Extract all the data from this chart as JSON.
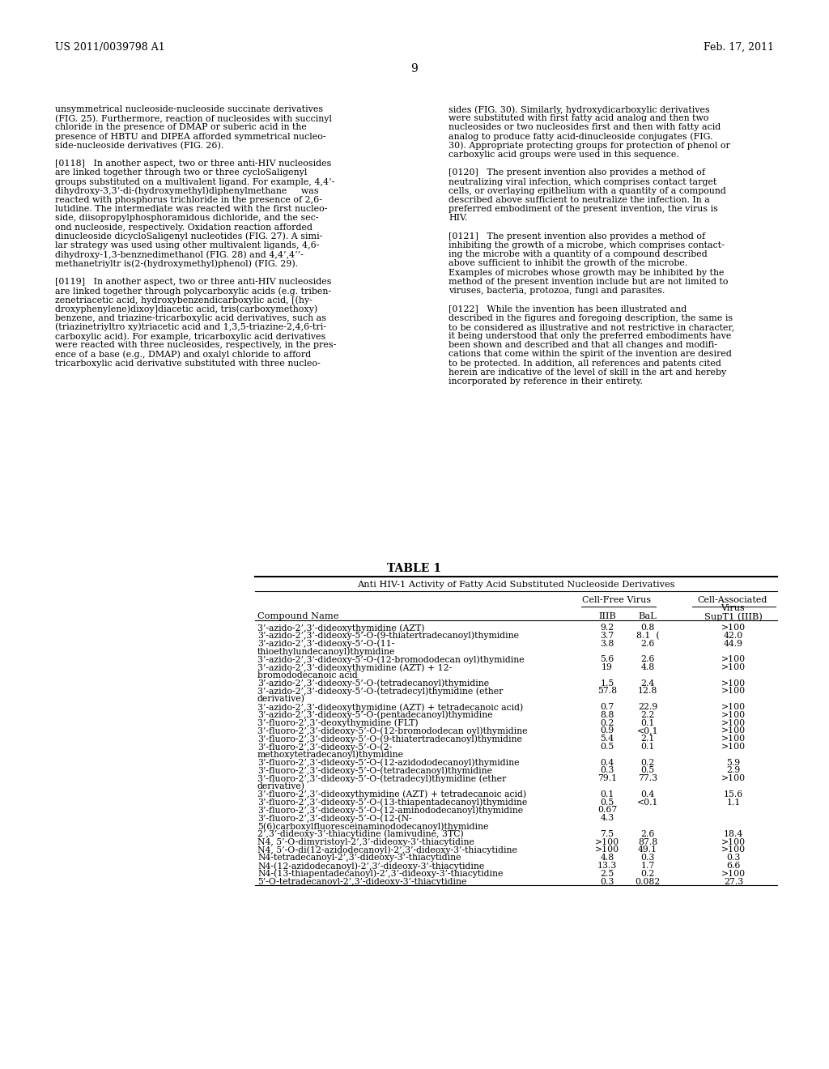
{
  "header_left": "US 2011/0039798 A1",
  "header_right": "Feb. 17, 2011",
  "page_number": "9",
  "left_col_lines": [
    "unsymmetrical nucleoside-nucleoside succinate derivatives",
    "(FIG. 25). Furthermore, reaction of nucleosides with succinyl",
    "chloride in the presence of DMAP or suberic acid in the",
    "presence of HBTU and DIPEA afforded symmetrical nucleo-",
    "side-nucleoside derivatives (FIG. 26).",
    "",
    "[0118]   In another aspect, two or three anti-HIV nucleosides",
    "are linked together through two or three cycloSaligenyl",
    "groups substituted on a multivalent ligand. For example, 4,4’-",
    "dihydroxy-3,3’-di-(hydroxymethyl)diphenylmethane     was",
    "reacted with phosphorus trichloride in the presence of 2,6-",
    "lutidine. The intermediate was reacted with the first nucleo-",
    "side, diisopropylphosphoramidous dichloride, and the sec-",
    "ond nucleoside, respectively. Oxidation reaction afforded",
    "dinucleoside dicycloSaligenyl nucleotides (FIG. 27). A simi-",
    "lar strategy was used using other multivalent ligands, 4,6-",
    "dihydroxy-1,3-benznedimethanol (FIG. 28) and 4,4’,4’’-",
    "methanetriyltr is(2-(hydroxymethyl)phenol) (FIG. 29).",
    "",
    "[0119]   In another aspect, two or three anti-HIV nucleosides",
    "are linked together through polycarboxylic acids (e.g. triben-",
    "zenetriacetic acid, hydroxybenzendicarboxylic acid, [(hy-",
    "droxyphenylene)dixoy]diacetic acid, tris(carboxymethoxy)",
    "benzene, and triazine-tricarboxylic acid derivatives, such as",
    "(triazinetriyltro xy)triacetic acid and 1,3,5-triazine-2,4,6-tri-",
    "carboxylic acid). For example, tricarboxylic acid derivatives",
    "were reacted with three nucleosides, respectively, in the pres-",
    "ence of a base (e.g., DMAP) and oxalyl chloride to afford",
    "tricarboxylic acid derivative substituted with three nucleo-"
  ],
  "right_col_lines": [
    "sides (FIG. 30). Similarly, hydroxydicarboxylic derivatives",
    "were substituted with first fatty acid analog and then two",
    "nucleosides or two nucleosides first and then with fatty acid",
    "analog to produce fatty acid-dinucleoside conjugates (FIG.",
    "30). Appropriate protecting groups for protection of phenol or",
    "carboxylic acid groups were used in this sequence.",
    "",
    "[0120]   The present invention also provides a method of",
    "neutralizing viral infection, which comprises contact target",
    "cells, or overlaying epithelium with a quantity of a compound",
    "described above sufficient to neutralize the infection. In a",
    "preferred embodiment of the present invention, the virus is",
    "HIV.",
    "",
    "[0121]   The present invention also provides a method of",
    "inhibiting the growth of a microbe, which comprises contact-",
    "ing the microbe with a quantity of a compound described",
    "above sufficient to inhibit the growth of the microbe.",
    "Examples of microbes whose growth may be inhibited by the",
    "method of the present invention include but are not limited to",
    "viruses, bacteria, protozoa, fungi and parasites.",
    "",
    "[0122]   While the invention has been illustrated and",
    "described in the figures and foregoing description, the same is",
    "to be considered as illustrative and not restrictive in character,",
    "it being understood that only the preferred embodiments have",
    "been shown and described and that all changes and modifi-",
    "cations that come within the spirit of the invention are desired",
    "to be protected. In addition, all references and patents cited",
    "herein are indicative of the level of skill in the art and hereby",
    "incorporated by reference in their entirety."
  ],
  "table_title": "TABLE 1",
  "table_subtitle": "Anti HIV-1 Activity of Fatty Acid Substituted Nucleoside Derivatives",
  "table_rows": [
    [
      "3’-azido-2’,3’-dideoxythymidine (AZT)",
      "9.2",
      "0.8",
      ">100"
    ],
    [
      "3’-azido-2’,3’-dideoxy-5’-O-(9-thiatertradecanoyl)thymidine",
      "3.7",
      "8.1  (",
      "42.0"
    ],
    [
      "3’-azido-2’,3’-dideoxy-5’-O-(11-",
      "3.8",
      "2.6",
      "44.9"
    ],
    [
      "thioethylundecanoyl)thymidine",
      "",
      "",
      ""
    ],
    [
      "3’-azido-2’,3’-dideoxy-5’-O-(12-bromododecan oyl)thymidine",
      "5.6",
      "2.6",
      ">100"
    ],
    [
      "3’-azido-2’,3’-dideoxythymidine (AZT) + 12-",
      "19",
      "4.8",
      ">100"
    ],
    [
      "bromododecanoic acid",
      "",
      "",
      ""
    ],
    [
      "3’-azido-2’,3’-dideoxy-5’-O-(tetradecanoyl)thymidine",
      "1.5",
      "2.4",
      ">100"
    ],
    [
      "3’-azido-2’,3’-dideoxy-5’-O-(tetradecyl)thymidine (ether",
      "57.8",
      "12.8",
      ">100"
    ],
    [
      "derivative)",
      "",
      "",
      ""
    ],
    [
      "3’-azido-2’,3’-dideoxythymidine (AZT) + tetradecanoic acid)",
      "0.7",
      "22.9",
      ">100"
    ],
    [
      "3’-azido-2’,3’-dideoxy-5’-O-(pentadecanoyl)thymidine",
      "8.8",
      "2.2",
      ">100"
    ],
    [
      "3’-fluoro-2’,3’-deoxythymidine (FLT)",
      "0.2",
      "0.1",
      ">100"
    ],
    [
      "3’-fluoro-2’,3’-dideoxy-5’-O-(12-bromododecan oyl)thymidine",
      "0.9",
      "<0,1",
      ">100"
    ],
    [
      "3’-fluoro-2’,3’-dideoxy-5’-O-(9-thiatertradecanoyl)thymidine",
      "5.4",
      "2.1",
      ">100"
    ],
    [
      "3’-fluoro-2’,3’-dideoxy-5’-O-(2-",
      "0.5",
      "0.1",
      ">100"
    ],
    [
      "methoxytetradecanoyl)thymidine",
      "",
      "",
      ""
    ],
    [
      "3’-fluoro-2’,3’-dideoxy-5’-O-(12-azidododecanoyl)thymidine",
      "0.4",
      "0.2",
      "5.9"
    ],
    [
      "3’-fluoro-2’,3’-dideoxy-5’-O-(tetradecanoyl)thymidine",
      "0.3",
      "0.5",
      "2.9"
    ],
    [
      "3’-fluoro-2’,3’-dideoxy-5’-O-(tetradecyl)thymidine (ether",
      "79.1",
      "77.3",
      ">100"
    ],
    [
      "derivative)",
      "",
      "",
      ""
    ],
    [
      "3’-fluoro-2’,3’-dideoxythymidine (AZT) + tetradecanoic acid)",
      "0.1",
      "0.4",
      "15.6"
    ],
    [
      "3’-fluoro-2’,3’-dideoxy-5’-O-(13-thiapentadecanoyl)thymidine",
      "0.5",
      "<0.1",
      "1.1"
    ],
    [
      "3’-fluoro-2’,3’-dideoxy-5’-O-(12-aminododecanoyl)thymidine",
      "0.67",
      "",
      ""
    ],
    [
      "3’-fluoro-2’,3’-dideoxy-5’-O-(12-(N-",
      "4.3",
      "",
      ""
    ],
    [
      "5(6)carboxylfluoresceinaminododecanoyl)thymidine",
      "",
      "",
      ""
    ],
    [
      "2’,3’-dideoxy-3’-thiacytidine (lamivudine, 3TC)",
      "7.5",
      "2.6",
      "18.4"
    ],
    [
      "N4, 5’-O-dimyristoyl-2’,3’-dideoxy-3’-thiacytidine",
      ">100",
      "87.8",
      ">100"
    ],
    [
      "N4, 5’-O-di(12-azidodecanoyl)-2’,3’-dideoxy-3’-thiacytidine",
      ">100",
      "49.1",
      ">100"
    ],
    [
      "N4-tetradecanoyl-2’,3’-dideoxy-3’-thiacytidine",
      "4.8",
      "0.3",
      "0.3"
    ],
    [
      "N4-(12-azidodecanoyl)-2’,3’-dideoxy-3’-thiacytidine",
      "13.3",
      "1.7",
      "6.6"
    ],
    [
      "N4-(13-thiapentadecanoyl)-2’,3’-dideoxy-3’-thiacytidine",
      "2.5",
      "0.2",
      ">100"
    ],
    [
      "5’-O-tetradecanoyl-2’,3’-dideoxy-3’-thiacytidine",
      "0.3",
      "0.082",
      "27.3"
    ]
  ]
}
